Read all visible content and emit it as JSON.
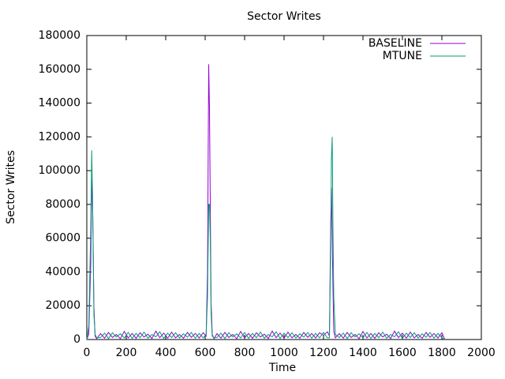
{
  "chart_data": {
    "type": "line",
    "title": "Sector Writes",
    "x_label": "Time",
    "y_label": "Sector Writes",
    "x": [
      0,
      10,
      20,
      25,
      28,
      32,
      36,
      42,
      50,
      70,
      90,
      110,
      130,
      150,
      170,
      190,
      210,
      230,
      250,
      270,
      290,
      310,
      330,
      350,
      370,
      390,
      410,
      430,
      450,
      470,
      490,
      510,
      530,
      550,
      570,
      590,
      605,
      612,
      618,
      622,
      626,
      630,
      636,
      645,
      660,
      680,
      700,
      720,
      740,
      760,
      780,
      800,
      820,
      840,
      860,
      880,
      900,
      920,
      940,
      960,
      980,
      1000,
      1020,
      1040,
      1060,
      1080,
      1100,
      1120,
      1140,
      1160,
      1180,
      1200,
      1220,
      1230,
      1236,
      1240,
      1244,
      1248,
      1252,
      1260,
      1280,
      1300,
      1320,
      1340,
      1360,
      1380,
      1400,
      1420,
      1440,
      1460,
      1480,
      1500,
      1520,
      1540,
      1560,
      1580,
      1600,
      1620,
      1640,
      1660,
      1680,
      1700,
      1720,
      1740,
      1760,
      1780,
      1800,
      1815
    ],
    "series": [
      {
        "name": "BASELINE",
        "color": "#9400d3",
        "values": [
          0,
          3000,
          45000,
          95000,
          92000,
          56000,
          20000,
          2000,
          500,
          3500,
          800,
          4200,
          1200,
          3000,
          500,
          4800,
          900,
          3600,
          700,
          4000,
          1500,
          3200,
          600,
          5000,
          1100,
          3800,
          800,
          4400,
          1000,
          3000,
          700,
          4200,
          1300,
          3600,
          900,
          4000,
          2000,
          40000,
          163000,
          136000,
          80000,
          22000,
          3000,
          500,
          3500,
          800,
          4200,
          1200,
          3000,
          500,
          4800,
          900,
          3600,
          700,
          4000,
          1500,
          3200,
          600,
          5000,
          1100,
          3800,
          800,
          4400,
          1000,
          3000,
          700,
          4200,
          1300,
          3600,
          900,
          4000,
          2500,
          4600,
          2000,
          65000,
          90000,
          60000,
          30000,
          5000,
          1000,
          3500,
          800,
          4200,
          1200,
          3000,
          500,
          4800,
          900,
          3600,
          700,
          4000,
          1500,
          3200,
          600,
          5000,
          1100,
          3800,
          800,
          4400,
          1000,
          3000,
          700,
          4200,
          1300,
          3600,
          900,
          4000,
          0
        ]
      },
      {
        "name": "MTUNE",
        "color": "#009e73",
        "values": [
          0,
          8000,
          65000,
          112000,
          90000,
          60000,
          15000,
          3000,
          1000,
          1200,
          3800,
          600,
          4000,
          1500,
          3400,
          900,
          4200,
          700,
          3600,
          1100,
          4400,
          800,
          3000,
          1600,
          4600,
          600,
          3800,
          1200,
          4000,
          900,
          3400,
          1400,
          4200,
          800,
          3600,
          1000,
          3000,
          25000,
          80000,
          80000,
          60000,
          15000,
          2000,
          1000,
          1200,
          3800,
          600,
          4000,
          1500,
          3400,
          900,
          4200,
          700,
          3600,
          1100,
          4400,
          800,
          3000,
          1600,
          4600,
          600,
          3800,
          1200,
          4000,
          900,
          3400,
          1400,
          4200,
          800,
          3600,
          1000,
          4200,
          1000,
          1000,
          50000,
          107000,
          120000,
          65000,
          25000,
          3000,
          1200,
          3800,
          600,
          4000,
          1500,
          3400,
          900,
          4200,
          700,
          3600,
          1100,
          4400,
          800,
          3000,
          1600,
          4600,
          600,
          3800,
          1200,
          4000,
          900,
          3400,
          1400,
          4200,
          800,
          3600,
          1000,
          0
        ]
      }
    ],
    "xlim": [
      0,
      2000
    ],
    "xticks": [
      0,
      200,
      400,
      600,
      800,
      1000,
      1200,
      1400,
      1600,
      1800,
      2000
    ],
    "ylim": [
      0,
      180000
    ],
    "yticks": [
      0,
      20000,
      40000,
      60000,
      80000,
      100000,
      120000,
      140000,
      160000,
      180000
    ],
    "grid": false,
    "legend": "top-right"
  }
}
